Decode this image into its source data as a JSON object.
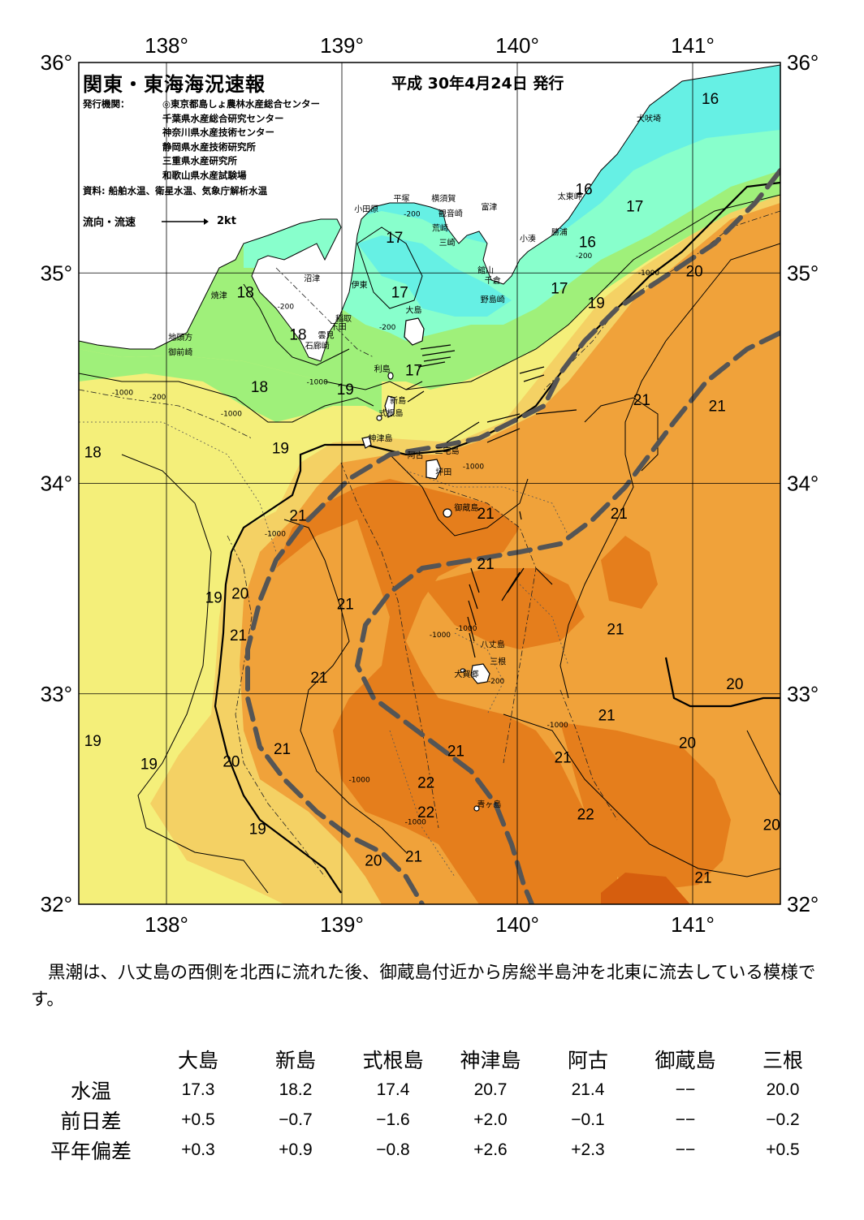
{
  "header": {
    "title": "関東・東海海況速報",
    "date": "平成 30年4月24日 発行",
    "issuers_label": "発行機関：",
    "issuers": [
      "◎東京都島しょ農林水産総合センター",
      "千葉県水産総合研究センター",
      "神奈川県水産技術センター",
      "静岡県水産技術研究所",
      "三重県水産研究所",
      "和歌山県水産試験場"
    ],
    "source": "資料: 船舶水温、衛星水温、気象庁解析水温",
    "legend_label": "流向・流速",
    "legend_speed": "2kt"
  },
  "map": {
    "lon_labels": [
      "138°",
      "139°",
      "140°",
      "141°"
    ],
    "lat_labels": [
      "36°",
      "35°",
      "34°",
      "33°",
      "32°"
    ],
    "lon_range": [
      137.5,
      141.5
    ],
    "lat_range": [
      32,
      36
    ],
    "colors": {
      "t16": "#66f0e4",
      "t17": "#88ffcc",
      "t18": "#9ff07a",
      "t19": "#f4ef7a",
      "t20": "#f4d164",
      "t21": "#f0a23a",
      "t22": "#e57e1c",
      "t23": "#d65e0e",
      "land": "#ffffff",
      "kuroshio": "#555555"
    },
    "temp_labels": [
      {
        "text": "16",
        "lon": 141.1,
        "lat": 35.83
      },
      {
        "text": "16",
        "lon": 140.38,
        "lat": 35.4
      },
      {
        "text": "16",
        "lon": 140.4,
        "lat": 35.15
      },
      {
        "text": "17",
        "lon": 140.67,
        "lat": 35.32
      },
      {
        "text": "17",
        "lon": 139.3,
        "lat": 35.17
      },
      {
        "text": "17",
        "lon": 139.33,
        "lat": 34.91
      },
      {
        "text": "17",
        "lon": 140.24,
        "lat": 34.93
      },
      {
        "text": "17",
        "lon": 139.41,
        "lat": 34.54
      },
      {
        "text": "18",
        "lon": 138.45,
        "lat": 34.91
      },
      {
        "text": "18",
        "lon": 138.75,
        "lat": 34.71
      },
      {
        "text": "18",
        "lon": 138.53,
        "lat": 34.46
      },
      {
        "text": "18",
        "lon": 137.58,
        "lat": 34.15
      },
      {
        "text": "19",
        "lon": 140.45,
        "lat": 34.86
      },
      {
        "text": "19",
        "lon": 139.02,
        "lat": 34.45
      },
      {
        "text": "19",
        "lon": 138.65,
        "lat": 34.17
      },
      {
        "text": "19",
        "lon": 138.27,
        "lat": 33.46
      },
      {
        "text": "19",
        "lon": 137.58,
        "lat": 32.78
      },
      {
        "text": "19",
        "lon": 137.9,
        "lat": 32.67
      },
      {
        "text": "19",
        "lon": 138.52,
        "lat": 32.36
      },
      {
        "text": "20",
        "lon": 141.01,
        "lat": 35.01
      },
      {
        "text": "20",
        "lon": 138.42,
        "lat": 33.48
      },
      {
        "text": "20",
        "lon": 138.37,
        "lat": 32.68
      },
      {
        "text": "20",
        "lon": 141.24,
        "lat": 33.05
      },
      {
        "text": "20",
        "lon": 140.97,
        "lat": 32.77
      },
      {
        "text": "20",
        "lon": 141.45,
        "lat": 32.38
      },
      {
        "text": "20",
        "lon": 139.18,
        "lat": 32.21
      },
      {
        "text": "21",
        "lon": 140.71,
        "lat": 34.4
      },
      {
        "text": "21",
        "lon": 141.14,
        "lat": 34.37
      },
      {
        "text": "21",
        "lon": 138.75,
        "lat": 33.85
      },
      {
        "text": "21",
        "lon": 139.82,
        "lat": 33.86
      },
      {
        "text": "21",
        "lon": 140.58,
        "lat": 33.86
      },
      {
        "text": "21",
        "lon": 139.82,
        "lat": 33.62
      },
      {
        "text": "21",
        "lon": 139.02,
        "lat": 33.43
      },
      {
        "text": "21",
        "lon": 138.41,
        "lat": 33.28
      },
      {
        "text": "21",
        "lon": 140.56,
        "lat": 33.31
      },
      {
        "text": "21",
        "lon": 138.87,
        "lat": 33.08
      },
      {
        "text": "21",
        "lon": 140.51,
        "lat": 32.9
      },
      {
        "text": "21",
        "lon": 138.66,
        "lat": 32.74
      },
      {
        "text": "21",
        "lon": 139.65,
        "lat": 32.73
      },
      {
        "text": "21",
        "lon": 140.26,
        "lat": 32.7
      },
      {
        "text": "21",
        "lon": 139.41,
        "lat": 32.23
      },
      {
        "text": "21",
        "lon": 141.06,
        "lat": 32.13
      },
      {
        "text": "22",
        "lon": 139.48,
        "lat": 32.58
      },
      {
        "text": "22",
        "lon": 139.48,
        "lat": 32.44
      },
      {
        "text": "22",
        "lon": 140.39,
        "lat": 32.43
      }
    ],
    "places": [
      {
        "text": "犬吠埼",
        "lon": 140.75,
        "lat": 35.72
      },
      {
        "text": "太東岬",
        "lon": 140.3,
        "lat": 35.35
      },
      {
        "text": "勝浦",
        "lon": 140.24,
        "lat": 35.18
      },
      {
        "text": "小湊",
        "lon": 140.06,
        "lat": 35.15
      },
      {
        "text": "富津",
        "lon": 139.84,
        "lat": 35.3
      },
      {
        "text": "横須賀",
        "lon": 139.58,
        "lat": 35.34
      },
      {
        "text": "観音崎",
        "lon": 139.62,
        "lat": 35.27
      },
      {
        "text": "荒崎",
        "lon": 139.56,
        "lat": 35.2
      },
      {
        "text": "平塚",
        "lon": 139.34,
        "lat": 35.34
      },
      {
        "text": "小田原",
        "lon": 139.14,
        "lat": 35.29
      },
      {
        "text": "三崎",
        "lon": 139.6,
        "lat": 35.13
      },
      {
        "text": "館山",
        "lon": 139.82,
        "lat": 35.0
      },
      {
        "text": "千倉",
        "lon": 139.86,
        "lat": 34.95
      },
      {
        "text": "野島崎",
        "lon": 139.86,
        "lat": 34.86
      },
      {
        "text": "沼津",
        "lon": 138.83,
        "lat": 34.96
      },
      {
        "text": "伊東",
        "lon": 139.1,
        "lat": 34.93
      },
      {
        "text": "焼津",
        "lon": 138.3,
        "lat": 34.88
      },
      {
        "text": "大島",
        "lon": 139.41,
        "lat": 34.81
      },
      {
        "text": "稲取",
        "lon": 139.01,
        "lat": 34.77
      },
      {
        "text": "下田",
        "lon": 138.98,
        "lat": 34.73
      },
      {
        "text": "雲見",
        "lon": 138.91,
        "lat": 34.69
      },
      {
        "text": "石廊崎",
        "lon": 138.86,
        "lat": 34.64
      },
      {
        "text": "地頭方",
        "lon": 138.08,
        "lat": 34.68
      },
      {
        "text": "御前崎",
        "lon": 138.08,
        "lat": 34.61
      },
      {
        "text": "利島",
        "lon": 139.23,
        "lat": 34.53
      },
      {
        "text": "新島",
        "lon": 139.32,
        "lat": 34.38
      },
      {
        "text": "式根島",
        "lon": 139.28,
        "lat": 34.32
      },
      {
        "text": "神津島",
        "lon": 139.22,
        "lat": 34.2
      },
      {
        "text": "三宅島",
        "lon": 139.6,
        "lat": 34.14
      },
      {
        "text": "阿古",
        "lon": 139.42,
        "lat": 34.12
      },
      {
        "text": "坪田",
        "lon": 139.58,
        "lat": 34.04
      },
      {
        "text": "御蔵島",
        "lon": 139.71,
        "lat": 33.87
      },
      {
        "text": "八丈島",
        "lon": 139.86,
        "lat": 33.22
      },
      {
        "text": "三根",
        "lon": 139.89,
        "lat": 33.14
      },
      {
        "text": "大賀郷",
        "lon": 139.71,
        "lat": 33.08
      },
      {
        "text": "青ヶ島",
        "lon": 139.84,
        "lat": 32.46
      }
    ],
    "depth_labels": [
      {
        "text": "-200",
        "lon": 139.4,
        "lat": 35.27
      },
      {
        "text": "-200",
        "lon": 138.68,
        "lat": 34.83
      },
      {
        "text": "-200",
        "lon": 139.26,
        "lat": 34.73
      },
      {
        "text": "-1000",
        "lon": 138.86,
        "lat": 34.47
      },
      {
        "text": "-1000",
        "lon": 137.75,
        "lat": 34.42
      },
      {
        "text": "-200",
        "lon": 137.95,
        "lat": 34.4
      },
      {
        "text": "-1000",
        "lon": 138.37,
        "lat": 34.32
      },
      {
        "text": "-1000",
        "lon": 138.62,
        "lat": 33.75
      },
      {
        "text": "-1000",
        "lon": 139.75,
        "lat": 34.07
      },
      {
        "text": "-1000",
        "lon": 139.71,
        "lat": 33.3
      },
      {
        "text": "-1000",
        "lon": 139.56,
        "lat": 33.27
      },
      {
        "text": "-200",
        "lon": 139.88,
        "lat": 33.05
      },
      {
        "text": "-1000",
        "lon": 140.23,
        "lat": 32.84
      },
      {
        "text": "-1000",
        "lon": 139.1,
        "lat": 32.58
      },
      {
        "text": "-1000",
        "lon": 139.42,
        "lat": 32.38
      },
      {
        "text": "-200",
        "lon": 140.38,
        "lat": 35.07
      },
      {
        "text": "-1000",
        "lon": 140.75,
        "lat": 34.99
      }
    ]
  },
  "summary": "黒潮は、八丈島の西側を北西に流れた後、御蔵島付近から房総半島沖を北東に流去している模様です。",
  "stats": {
    "stations": [
      "大島",
      "新島",
      "式根島",
      "神津島",
      "阿古",
      "御蔵島",
      "三根"
    ],
    "rows": [
      {
        "label": "水温",
        "values": [
          "17.3",
          "18.2",
          "17.4",
          "20.7",
          "21.4",
          "−−",
          "20.0"
        ]
      },
      {
        "label": "前日差",
        "values": [
          "+0.5",
          "−0.7",
          "−1.6",
          "+2.0",
          "−0.1",
          "−−",
          "−0.2"
        ]
      },
      {
        "label": "平年偏差",
        "values": [
          "+0.3",
          "+0.9",
          "−0.8",
          "+2.6",
          "+2.3",
          "−−",
          "+0.5"
        ]
      }
    ]
  }
}
